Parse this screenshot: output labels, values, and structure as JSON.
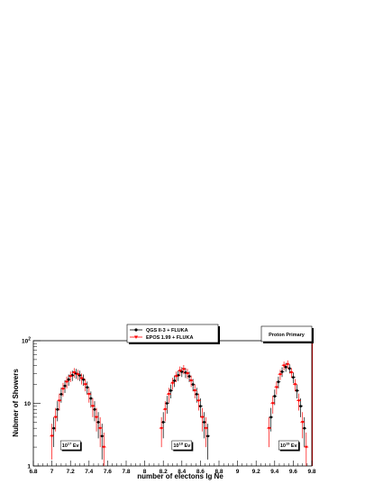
{
  "chart_data": {
    "type": "scatter",
    "xlabel": "number of electons lg Ne",
    "ylabel": "Nubmer of Showers",
    "xlim": [
      6.8,
      9.8
    ],
    "ylim": [
      1,
      100
    ],
    "y_scale": "log",
    "x_ticks": [
      "6.8",
      "7",
      "7.2",
      "7.4",
      "7.6",
      "7.8",
      "8",
      "8.2",
      "8.4",
      "8.6",
      "8.8",
      "9",
      "9.2",
      "9.4",
      "9.6",
      "9.8"
    ],
    "y_ticks": [
      {
        "value": 1,
        "label": "1"
      },
      {
        "value": 10,
        "label": "10"
      },
      {
        "value": 100,
        "label": "10",
        "sup": "2"
      }
    ],
    "legend": {
      "placement": "top-center"
    },
    "annotation": "Proton Primary",
    "energy_labels": [
      {
        "x": 7.2,
        "text": "10",
        "sup": "17",
        "unit": "Ev"
      },
      {
        "x": 8.4,
        "text": "10",
        "sup": "18",
        "unit": "Ev"
      },
      {
        "x": 9.55,
        "text": "10",
        "sup": "19",
        "unit": "Ev"
      }
    ],
    "series": [
      {
        "name": "QGS II-3 + FLUKA",
        "color": "#000000",
        "marker": "circle",
        "points": [
          [
            7.02,
            4
          ],
          [
            7.06,
            8
          ],
          [
            7.1,
            14
          ],
          [
            7.14,
            19
          ],
          [
            7.18,
            24
          ],
          [
            7.22,
            28
          ],
          [
            7.26,
            30
          ],
          [
            7.3,
            28
          ],
          [
            7.34,
            24
          ],
          [
            7.38,
            18
          ],
          [
            7.42,
            12
          ],
          [
            7.46,
            8
          ],
          [
            7.5,
            5
          ],
          [
            7.54,
            3
          ],
          [
            8.2,
            5
          ],
          [
            8.24,
            10
          ],
          [
            8.28,
            16
          ],
          [
            8.32,
            23
          ],
          [
            8.36,
            28
          ],
          [
            8.4,
            32
          ],
          [
            8.44,
            31
          ],
          [
            8.48,
            27
          ],
          [
            8.52,
            20
          ],
          [
            8.56,
            14
          ],
          [
            8.6,
            9
          ],
          [
            8.64,
            5
          ],
          [
            8.68,
            3
          ],
          [
            9.36,
            6
          ],
          [
            9.4,
            13
          ],
          [
            9.44,
            22
          ],
          [
            9.48,
            32
          ],
          [
            9.52,
            38
          ],
          [
            9.56,
            36
          ],
          [
            9.6,
            26
          ],
          [
            9.64,
            16
          ],
          [
            9.68,
            9
          ],
          [
            9.72,
            4
          ]
        ]
      },
      {
        "name": "EPOS 1.99 + FLUKA",
        "color": "#ff0000",
        "marker": "triangle-down",
        "points": [
          [
            7.0,
            3
          ],
          [
            7.04,
            6
          ],
          [
            7.08,
            11
          ],
          [
            7.12,
            17
          ],
          [
            7.16,
            22
          ],
          [
            7.2,
            27
          ],
          [
            7.24,
            31
          ],
          [
            7.28,
            29
          ],
          [
            7.32,
            25
          ],
          [
            7.36,
            20
          ],
          [
            7.4,
            14
          ],
          [
            7.44,
            9
          ],
          [
            7.48,
            6
          ],
          [
            7.52,
            4
          ],
          [
            7.56,
            2
          ],
          [
            8.18,
            4
          ],
          [
            8.22,
            8
          ],
          [
            8.26,
            14
          ],
          [
            8.3,
            21
          ],
          [
            8.34,
            27
          ],
          [
            8.38,
            33
          ],
          [
            8.42,
            35
          ],
          [
            8.46,
            30
          ],
          [
            8.5,
            23
          ],
          [
            8.54,
            16
          ],
          [
            8.58,
            11
          ],
          [
            8.62,
            6
          ],
          [
            8.66,
            4
          ],
          [
            9.34,
            4
          ],
          [
            9.38,
            10
          ],
          [
            9.42,
            18
          ],
          [
            9.46,
            29
          ],
          [
            9.5,
            40
          ],
          [
            9.54,
            42
          ],
          [
            9.58,
            31
          ],
          [
            9.62,
            20
          ],
          [
            9.66,
            11
          ],
          [
            9.7,
            5
          ],
          [
            9.74,
            2
          ]
        ]
      }
    ]
  }
}
